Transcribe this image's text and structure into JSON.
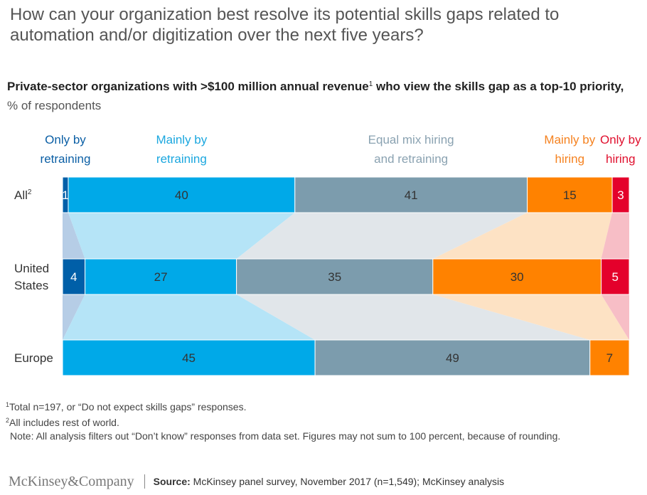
{
  "title": "How can your organization best resolve its potential skills gaps related to automation and/or digitization over the next five years?",
  "subtitle": {
    "bold_part1": "Private-sector organizations with >$100 million annual revenue",
    "footnote_mark": "1",
    "bold_part2": " who view the skills gap as a top-10 priority,",
    "unit": " % of respondents"
  },
  "chart_data": {
    "type": "bar",
    "orientation": "horizontal-stacked",
    "categories": [
      "All",
      "United States",
      "Europe"
    ],
    "category_marks": [
      "2",
      "",
      ""
    ],
    "series": [
      {
        "name": "Only by retraining",
        "color": "#005fa8",
        "text_color": "#0b5fa5",
        "values": [
          1,
          4,
          0
        ]
      },
      {
        "name": "Mainly by retraining",
        "color": "#00a9e8",
        "text_color": "#1ba7df",
        "values": [
          40,
          27,
          45
        ]
      },
      {
        "name": "Equal mix hiring and retraining",
        "color": "#7c9cad",
        "text_color": "#8aa2b1",
        "values": [
          41,
          35,
          49
        ]
      },
      {
        "name": "Mainly by hiring",
        "color": "#ff8200",
        "text_color": "#f58220",
        "values": [
          15,
          30,
          7
        ]
      },
      {
        "name": "Only by hiring",
        "color": "#e4002b",
        "text_color": "#e0102e",
        "values": [
          3,
          5,
          0
        ]
      }
    ],
    "legend_placement": "top",
    "connector_colors": [
      "#b6cde6",
      "#b5e4f7",
      "#e1e6ea",
      "#fde2c4",
      "#f7bec6"
    ]
  },
  "notes": {
    "n1_mark": "1",
    "n1": "Total n=197, or “Do not expect skills gaps” responses.",
    "n2_mark": "2",
    "n2": "All includes rest of world.",
    "note": "Note: All analysis filters out “Don’t know” responses from data set. Figures may not sum to 100 percent, because of rounding."
  },
  "footer": {
    "brand": "McKinsey&Company",
    "source_label": "Source:",
    "source_text": " McKinsey panel survey, November 2017 (n=1,549); McKinsey analysis"
  }
}
